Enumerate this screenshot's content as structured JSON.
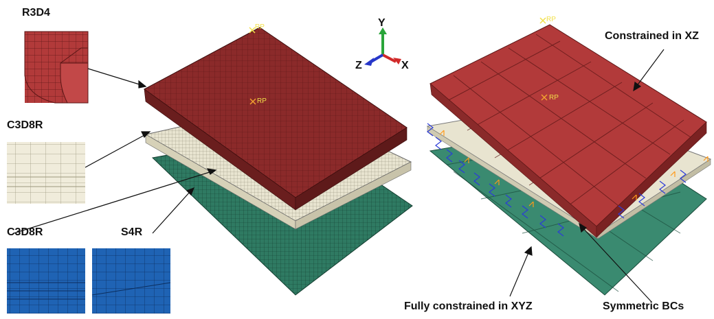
{
  "labels": {
    "r3d4": "R3D4",
    "c3d8r_top": "C3D8R",
    "c3d8r_bottom": "C3D8R",
    "s4r": "S4R",
    "constrained_xz": "Constrained in XZ",
    "fully_constrained": "Fully constrained in XYZ",
    "symmetric_bcs": "Symmetric BCs"
  },
  "reference_points": {
    "left_top": "RP",
    "left_center": "RP",
    "right_top": "RP",
    "right_center": "RP"
  },
  "axes": {
    "y": "Y",
    "z": "Z",
    "x": "X"
  },
  "colors": {
    "rigid_plate": "#8b2a2a",
    "rigid_plate_light": "#b23a3a",
    "solid_layer": "#e8e4d0",
    "shell_layer": "#2f7a62",
    "inset_blue": "#1f63b4",
    "inset_cream": "#f0ecdb",
    "bc_marker": "#2b3bd8",
    "bc_orange": "#ff9a1a",
    "rp_yellow": "#f2e04a",
    "axis_y": "#2aa53a",
    "axis_x": "#d12a2a",
    "axis_z": "#2737c9"
  }
}
